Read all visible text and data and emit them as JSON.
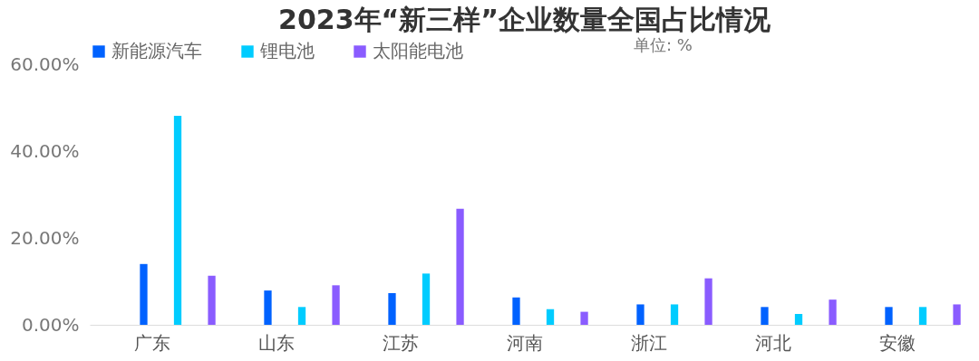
{
  "chart_data": {
    "type": "bar",
    "title": "2023年“新三样”企业数量全国占比情况",
    "categories": [
      "广东",
      "山东",
      "江苏",
      "河南",
      "浙江",
      "河北",
      "安徽"
    ],
    "series": [
      {
        "name": "新能源汽车",
        "color": "#0062ff",
        "values": [
          14.0,
          7.9,
          7.3,
          6.3,
          4.7,
          4.1,
          4.1
        ]
      },
      {
        "name": "锂电池",
        "color": "#00ccff",
        "values": [
          48.1,
          4.1,
          11.8,
          3.6,
          4.7,
          2.5,
          4.1
        ]
      },
      {
        "name": "太阳能电池",
        "color": "#8a5cff",
        "values": [
          11.3,
          9.1,
          26.7,
          3.0,
          10.7,
          5.8,
          4.7
        ]
      }
    ],
    "ylim": [
      0,
      60
    ],
    "yticks": [
      {
        "value": 0,
        "label": "0.00%"
      },
      {
        "value": 20,
        "label": "20.00%"
      },
      {
        "value": 40,
        "label": "40.00%"
      },
      {
        "value": 60,
        "label": "60.00%"
      }
    ],
    "grid": false,
    "legend": "top",
    "annotations": [
      "单位: %"
    ]
  }
}
